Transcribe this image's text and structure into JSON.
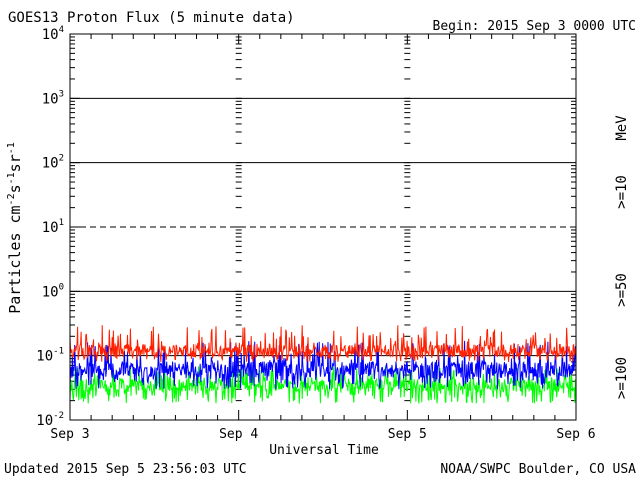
{
  "chart_data": {
    "type": "line",
    "title": "GOES13 Proton Flux (5 minute data)",
    "begin_label": "Begin: 2015 Sep 3 0000 UTC",
    "xlabel": "Universal Time",
    "ylabel": "Particles cm⁻²s⁻¹sr⁻¹",
    "ylabel_parts": {
      "base": "Particles cm",
      "e1": "-2",
      "mid1": "s",
      "e2": "-1",
      "mid2": "sr",
      "e3": "-1"
    },
    "y_scale": "log",
    "ylim": [
      0.01,
      10000
    ],
    "y_ticks": [
      {
        "label": "10",
        "exp": "-2",
        "value": 0.01
      },
      {
        "label": "10",
        "exp": "-1",
        "value": 0.1
      },
      {
        "label": "10",
        "exp": "0",
        "value": 1
      },
      {
        "label": "10",
        "exp": "1",
        "value": 10
      },
      {
        "label": "10",
        "exp": "2",
        "value": 100
      },
      {
        "label": "10",
        "exp": "3",
        "value": 1000
      },
      {
        "label": "10",
        "exp": "4",
        "value": 10000
      }
    ],
    "x_ticks": [
      "Sep 3",
      "Sep 4",
      "Sep 5",
      "Sep 6"
    ],
    "xlim": [
      "2015-09-03 00:00",
      "2015-09-06 00:00"
    ],
    "reference_lines": [
      {
        "value": 10,
        "style": "dashed"
      }
    ],
    "series": [
      {
        "name": ">=10",
        "color": "#ff2000",
        "approx_level": 0.12,
        "approx_max": 0.3,
        "approx_min": 0.08
      },
      {
        "name": ">=50",
        "color": "#0000ff",
        "approx_level": 0.06,
        "approx_max": 0.17,
        "approx_min": 0.03
      },
      {
        "name": ">=100",
        "color": "#00ff00",
        "approx_level": 0.035,
        "approx_max": 0.07,
        "approx_min": 0.018
      }
    ],
    "legend_unit": "MeV",
    "legend_placement": "right"
  },
  "footer": {
    "updated": "Updated 2015 Sep  5 23:56:03 UTC",
    "credit": "NOAA/SWPC Boulder, CO USA"
  }
}
